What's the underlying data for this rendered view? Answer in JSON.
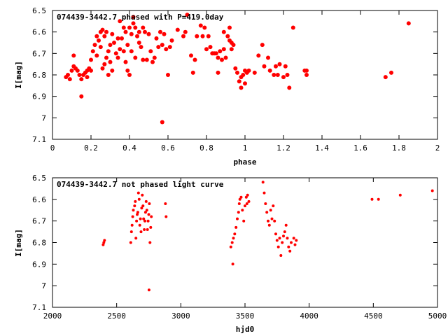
{
  "chart_data": [
    {
      "type": "scatter",
      "title": "074439-3442.7 phased with P=419.0day",
      "xlabel": "phase",
      "ylabel": "I[mag]",
      "xlim": [
        0,
        2
      ],
      "ylim": [
        6.5,
        7.1
      ],
      "y_inverted": true,
      "xticks": [
        "0",
        "0.2",
        "0.4",
        "0.6",
        "0.8",
        "1",
        "1.2",
        "1.4",
        "1.6",
        "1.8",
        "2"
      ],
      "yticks": [
        "6.5",
        "6.6",
        "6.7",
        "6.8",
        "6.9",
        "7",
        "7.1"
      ],
      "marker_color": "#ff0000",
      "grid": false,
      "series": [
        {
          "points": [
            [
              0.07,
              6.81
            ],
            [
              0.08,
              6.8
            ],
            [
              0.09,
              6.82
            ],
            [
              0.1,
              6.78
            ],
            [
              0.11,
              6.76
            ],
            [
              0.11,
              6.71
            ],
            [
              0.12,
              6.77
            ],
            [
              0.13,
              6.78
            ],
            [
              0.14,
              6.8
            ],
            [
              0.15,
              6.82
            ],
            [
              0.15,
              6.9
            ],
            [
              0.16,
              6.8
            ],
            [
              0.17,
              6.79
            ],
            [
              0.18,
              6.81
            ],
            [
              0.18,
              6.78
            ],
            [
              0.19,
              6.77
            ],
            [
              0.2,
              6.78
            ],
            [
              0.2,
              6.73
            ],
            [
              0.21,
              6.69
            ],
            [
              0.22,
              6.66
            ],
            [
              0.23,
              6.62
            ],
            [
              0.23,
              6.71
            ],
            [
              0.24,
              6.64
            ],
            [
              0.25,
              6.67
            ],
            [
              0.25,
              6.6
            ],
            [
              0.26,
              6.59
            ],
            [
              0.26,
              6.77
            ],
            [
              0.27,
              6.75
            ],
            [
              0.27,
              6.62
            ],
            [
              0.28,
              6.6
            ],
            [
              0.28,
              6.72
            ],
            [
              0.29,
              6.69
            ],
            [
              0.29,
              6.8
            ],
            [
              0.3,
              6.74
            ],
            [
              0.3,
              6.66
            ],
            [
              0.31,
              6.78
            ],
            [
              0.31,
              6.61
            ],
            [
              0.32,
              6.65
            ],
            [
              0.33,
              6.7
            ],
            [
              0.34,
              6.72
            ],
            [
              0.34,
              6.63
            ],
            [
              0.35,
              6.68
            ],
            [
              0.35,
              6.55
            ],
            [
              0.36,
              6.63
            ],
            [
              0.37,
              6.58
            ],
            [
              0.37,
              6.69
            ],
            [
              0.38,
              6.6
            ],
            [
              0.38,
              6.74
            ],
            [
              0.39,
              6.78
            ],
            [
              0.39,
              6.66
            ],
            [
              0.4,
              6.58
            ],
            [
              0.4,
              6.8
            ],
            [
              0.41,
              6.61
            ],
            [
              0.41,
              6.69
            ],
            [
              0.42,
              6.56
            ],
            [
              0.42,
              6.53
            ],
            [
              0.43,
              6.58
            ],
            [
              0.43,
              6.72
            ],
            [
              0.44,
              6.62
            ],
            [
              0.45,
              6.65
            ],
            [
              0.45,
              6.6
            ],
            [
              0.46,
              6.67
            ],
            [
              0.47,
              6.73
            ],
            [
              0.47,
              6.58
            ],
            [
              0.48,
              6.6
            ],
            [
              0.49,
              6.73
            ],
            [
              0.5,
              6.61
            ],
            [
              0.51,
              6.69
            ],
            [
              0.52,
              6.74
            ],
            [
              0.53,
              6.72
            ],
            [
              0.54,
              6.63
            ],
            [
              0.55,
              6.67
            ],
            [
              0.56,
              6.6
            ],
            [
              0.57,
              7.02
            ],
            [
              0.57,
              6.66
            ],
            [
              0.58,
              6.61
            ],
            [
              0.59,
              6.68
            ],
            [
              0.6,
              6.8
            ],
            [
              0.61,
              6.67
            ],
            [
              0.62,
              6.64
            ],
            [
              0.65,
              6.59
            ],
            [
              0.68,
              6.62
            ],
            [
              0.69,
              6.6
            ],
            [
              0.7,
              6.52
            ],
            [
              0.72,
              6.71
            ],
            [
              0.73,
              6.79
            ],
            [
              0.74,
              6.73
            ],
            [
              0.75,
              6.62
            ],
            [
              0.77,
              6.57
            ],
            [
              0.78,
              6.62
            ],
            [
              0.79,
              6.58
            ],
            [
              0.8,
              6.68
            ],
            [
              0.81,
              6.62
            ],
            [
              0.82,
              6.67
            ],
            [
              0.83,
              6.7
            ],
            [
              0.84,
              6.7
            ],
            [
              0.85,
              6.7
            ],
            [
              0.86,
              6.72
            ],
            [
              0.86,
              6.79
            ],
            [
              0.87,
              6.69
            ],
            [
              0.88,
              6.73
            ],
            [
              0.89,
              6.68
            ],
            [
              0.89,
              6.6
            ],
            [
              0.9,
              6.72
            ],
            [
              0.91,
              6.62
            ],
            [
              0.92,
              6.64
            ],
            [
              0.92,
              6.58
            ],
            [
              0.93,
              6.65
            ],
            [
              0.93,
              6.68
            ],
            [
              0.94,
              6.66
            ],
            [
              0.95,
              6.77
            ],
            [
              0.96,
              6.79
            ],
            [
              0.97,
              6.83
            ],
            [
              0.98,
              6.86
            ],
            [
              0.98,
              6.81
            ],
            [
              0.99,
              6.8
            ],
            [
              1.0,
              6.78
            ],
            [
              1.0,
              6.84
            ],
            [
              1.01,
              6.79
            ],
            [
              1.02,
              6.78
            ],
            [
              1.05,
              6.79
            ],
            [
              1.07,
              6.71
            ],
            [
              1.09,
              6.66
            ],
            [
              1.1,
              6.76
            ],
            [
              1.12,
              6.72
            ],
            [
              1.13,
              6.78
            ],
            [
              1.15,
              6.8
            ],
            [
              1.16,
              6.76
            ],
            [
              1.17,
              6.8
            ],
            [
              1.18,
              6.75
            ],
            [
              1.2,
              6.81
            ],
            [
              1.21,
              6.76
            ],
            [
              1.22,
              6.8
            ],
            [
              1.23,
              6.86
            ],
            [
              1.25,
              6.58
            ],
            [
              1.31,
              6.78
            ],
            [
              1.32,
              6.8
            ],
            [
              1.32,
              6.78
            ],
            [
              1.73,
              6.81
            ],
            [
              1.76,
              6.79
            ],
            [
              1.85,
              6.56
            ]
          ]
        }
      ]
    },
    {
      "type": "scatter",
      "title": "074439-3442.7 not phased light curve",
      "xlabel": "hjd0",
      "ylabel": "I[mag]",
      "xlim": [
        2000,
        5000
      ],
      "ylim": [
        6.5,
        7.1
      ],
      "y_inverted": true,
      "xticks": [
        "2000",
        "2500",
        "3000",
        "3500",
        "4000",
        "4500",
        "5000"
      ],
      "yticks": [
        "6.5",
        "6.6",
        "6.7",
        "6.8",
        "6.9",
        "7",
        "7.1"
      ],
      "marker_color": "#ff0000",
      "grid": false,
      "series": [
        {
          "points": [
            [
              2395,
              6.81
            ],
            [
              2400,
              6.8
            ],
            [
              2405,
              6.79
            ],
            [
              2610,
              6.8
            ],
            [
              2615,
              6.75
            ],
            [
              2620,
              6.72
            ],
            [
              2625,
              6.68
            ],
            [
              2630,
              6.65
            ],
            [
              2640,
              6.63
            ],
            [
              2645,
              6.61
            ],
            [
              2650,
              6.78
            ],
            [
              2655,
              6.7
            ],
            [
              2660,
              6.67
            ],
            [
              2665,
              6.66
            ],
            [
              2670,
              6.57
            ],
            [
              2675,
              6.6
            ],
            [
              2680,
              6.72
            ],
            [
              2685,
              6.69
            ],
            [
              2690,
              6.75
            ],
            [
              2695,
              6.64
            ],
            [
              2700,
              6.58
            ],
            [
              2705,
              6.63
            ],
            [
              2710,
              6.69
            ],
            [
              2715,
              6.74
            ],
            [
              2720,
              6.7
            ],
            [
              2725,
              6.66
            ],
            [
              2730,
              6.61
            ],
            [
              2735,
              6.65
            ],
            [
              2740,
              6.74
            ],
            [
              2745,
              6.7
            ],
            [
              2750,
              6.67
            ],
            [
              2752,
              7.02
            ],
            [
              2755,
              6.62
            ],
            [
              2760,
              6.8
            ],
            [
              2765,
              6.73
            ],
            [
              2770,
              6.68
            ],
            [
              2880,
              6.62
            ],
            [
              2885,
              6.68
            ],
            [
              3390,
              6.82
            ],
            [
              3400,
              6.8
            ],
            [
              3405,
              6.9
            ],
            [
              3410,
              6.78
            ],
            [
              3420,
              6.76
            ],
            [
              3430,
              6.73
            ],
            [
              3440,
              6.69
            ],
            [
              3450,
              6.66
            ],
            [
              3455,
              6.62
            ],
            [
              3460,
              6.6
            ],
            [
              3470,
              6.59
            ],
            [
              3480,
              6.65
            ],
            [
              3490,
              6.7
            ],
            [
              3500,
              6.63
            ],
            [
              3510,
              6.59
            ],
            [
              3515,
              6.62
            ],
            [
              3520,
              6.58
            ],
            [
              3530,
              6.61
            ],
            [
              3640,
              6.52
            ],
            [
              3650,
              6.57
            ],
            [
              3660,
              6.62
            ],
            [
              3670,
              6.66
            ],
            [
              3680,
              6.7
            ],
            [
              3690,
              6.72
            ],
            [
              3700,
              6.65
            ],
            [
              3710,
              6.69
            ],
            [
              3720,
              6.63
            ],
            [
              3730,
              6.7
            ],
            [
              3740,
              6.76
            ],
            [
              3750,
              6.79
            ],
            [
              3760,
              6.82
            ],
            [
              3770,
              6.78
            ],
            [
              3780,
              6.86
            ],
            [
              3790,
              6.8
            ],
            [
              3800,
              6.77
            ],
            [
              3810,
              6.75
            ],
            [
              3820,
              6.72
            ],
            [
              3830,
              6.78
            ],
            [
              3840,
              6.82
            ],
            [
              3850,
              6.84
            ],
            [
              3860,
              6.8
            ],
            [
              3880,
              6.78
            ],
            [
              3890,
              6.81
            ],
            [
              3900,
              6.79
            ],
            [
              4490,
              6.6
            ],
            [
              4540,
              6.6
            ],
            [
              4710,
              6.58
            ],
            [
              4960,
              6.56
            ]
          ]
        }
      ]
    }
  ]
}
